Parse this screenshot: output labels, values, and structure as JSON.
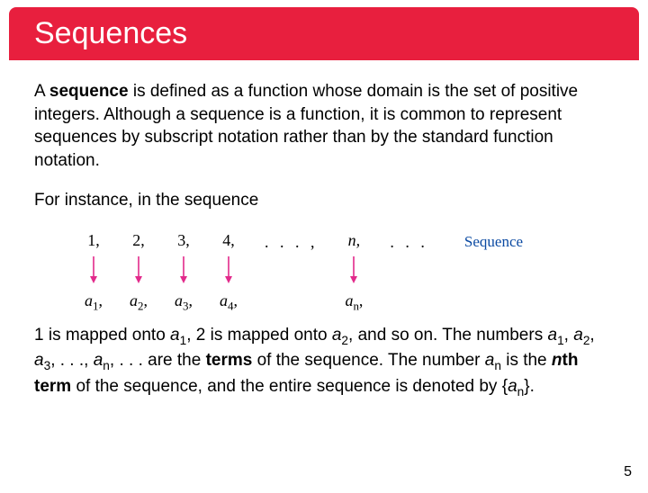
{
  "title": "Sequences",
  "para1_pre": "A ",
  "para1_bold": "sequence",
  "para1_post": " is defined as a function whose domain is the set of positive integers. Although a sequence is a function, it is common to represent sequences by subscript notation rather than by the standard function notation.",
  "para2": "For instance, in the sequence",
  "diagram": {
    "arrow_color": "#e22a8b",
    "arrow_height": 34,
    "columns": [
      {
        "top": "1,",
        "bot_base": "a",
        "bot_sub": "1",
        "bot_tail": ","
      },
      {
        "top": "2,",
        "bot_base": "a",
        "bot_sub": "2",
        "bot_tail": ","
      },
      {
        "top": "3,",
        "bot_base": "a",
        "bot_sub": "3",
        "bot_tail": ","
      },
      {
        "top": "4,",
        "bot_base": "a",
        "bot_sub": "4",
        "bot_tail": ","
      }
    ],
    "mid_dots": ". . . ,",
    "n_col": {
      "top": "n,",
      "bot_base": "a",
      "bot_sub": "n",
      "bot_tail": ","
    },
    "end_dots": ". . .",
    "label": "Sequence",
    "label_color": "#0b4aa2"
  },
  "para3": {
    "t1": "1 is mapped onto ",
    "a1_base": "a",
    "a1_sub": "1",
    "t2": ", 2 is mapped onto ",
    "a2_base": "a",
    "a2_sub": "2",
    "t3": ", and so on. The numbers ",
    "s1_base": "a",
    "s1_sub": "1",
    "c1": ", ",
    "s2_base": "a",
    "s2_sub": "2",
    "c2": ", ",
    "s3_base": "a",
    "s3_sub": "3",
    "c3": ", . . ., ",
    "sn_base": "a",
    "sn_sub": "n",
    "c4": ", . . . are the ",
    "terms_bold": "terms",
    "t4": " of the sequence. The number ",
    "an_base": "a",
    "an_sub": "n",
    "t5": " is the ",
    "nth_i": "n",
    "nth_bold": "th term",
    "t6": " of the sequence, and the entire sequence is denoted by {",
    "set_base": "a",
    "set_sub": "n",
    "t7": "}."
  },
  "page_number": "5"
}
